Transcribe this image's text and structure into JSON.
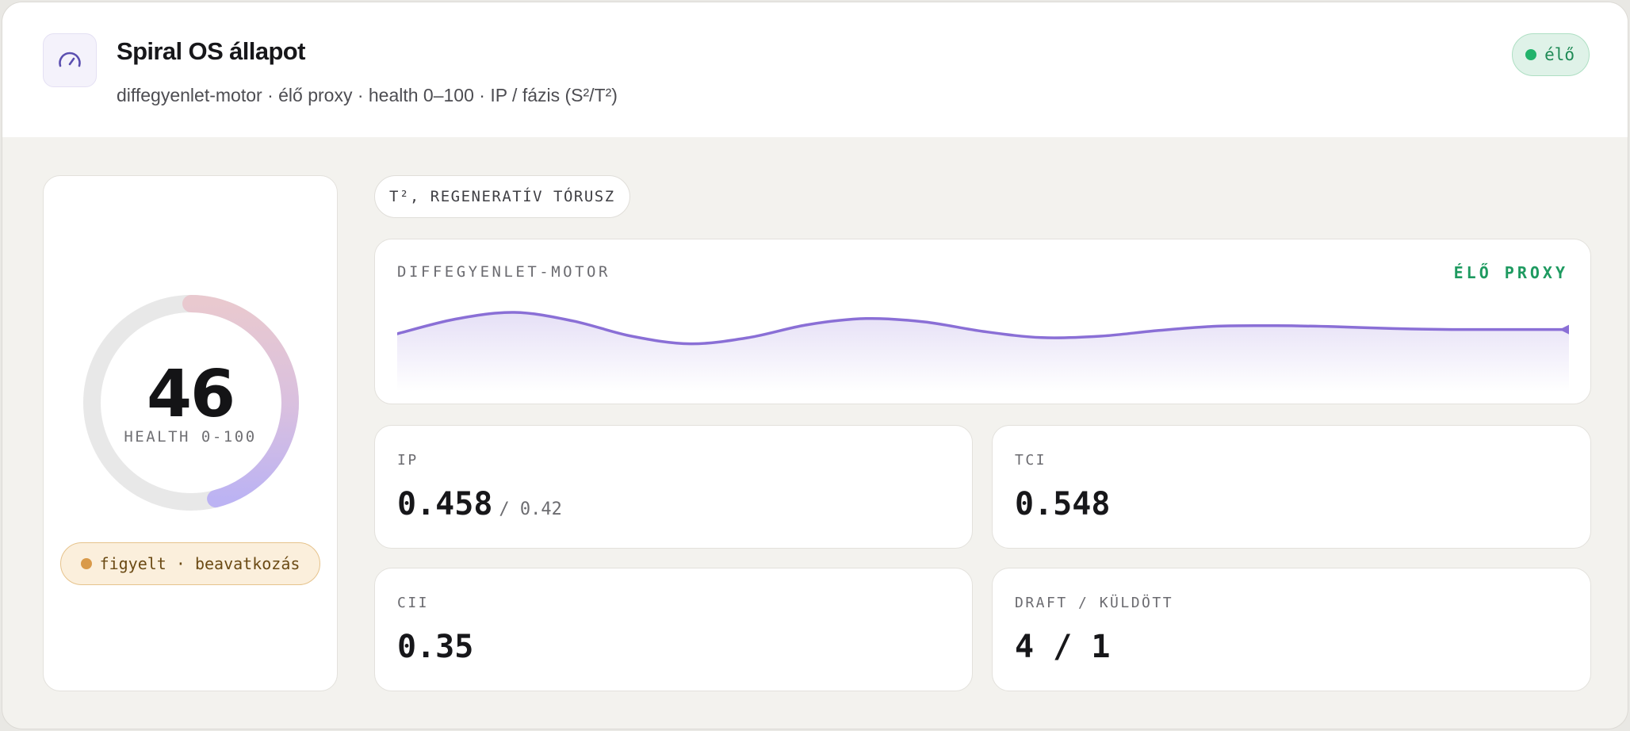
{
  "header": {
    "title": "Spiral OS állapot",
    "subtitle": "diffegyenlet-motor · élő proxy · health 0–100 · IP / fázis (S²/T²)",
    "live_badge": "élő",
    "app_icon": "gauge-icon"
  },
  "gauge": {
    "value": "46",
    "value_number": 46,
    "max": 100,
    "label": "HEALTH 0-100",
    "state": "figyelt · beavatkozás",
    "colors": {
      "track": "#e8e8e8",
      "arc_start": "#e8c6cc",
      "arc_end": "#c3b6f2"
    }
  },
  "tag": {
    "label": "T², REGENERATÍV TÓRUSZ"
  },
  "chart": {
    "title": "DIFFEGYENLET-MOTOR",
    "proxy_label": "ÉLŐ PROXY",
    "line_color": "#8a6fd6"
  },
  "chart_data": {
    "type": "line",
    "title": "DIFFEGYENLET-MOTOR",
    "xlabel": "",
    "ylabel": "",
    "grid": false,
    "legend": "none",
    "description": "damped oscillation trace",
    "series": [
      {
        "values": [
          0.55,
          0.86,
          1.0,
          0.82,
          0.5,
          0.34,
          0.47,
          0.74,
          0.87,
          0.8,
          0.6,
          0.47,
          0.5,
          0.62,
          0.71,
          0.72,
          0.7,
          0.66,
          0.64,
          0.64,
          0.64
        ]
      }
    ]
  },
  "metrics": {
    "ip": {
      "label": "IP",
      "value": "0.458",
      "target": "/ 0.42"
    },
    "tci": {
      "label": "TCI",
      "value": "0.548"
    },
    "cii": {
      "label": "CII",
      "value": "0.35"
    },
    "draft": {
      "label": "DRAFT / KÜLDÖTT",
      "value": "4 / 1"
    }
  },
  "colors": {
    "accent": "#8a6fd6",
    "live_green": "#1e9a60",
    "warn_amber": "#d99a4a",
    "panel_bg": "#f3f2ee"
  }
}
